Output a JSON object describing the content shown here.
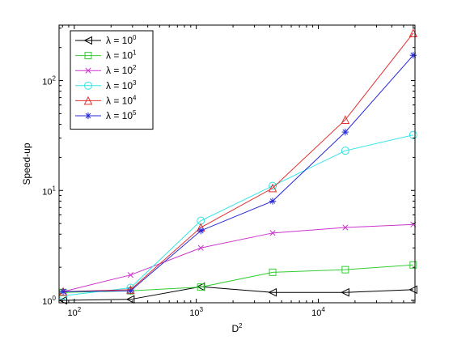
{
  "chart_data": {
    "type": "line",
    "xscale": "log",
    "yscale": "log",
    "xlabel": "D",
    "xlabel_sup": "2",
    "ylabel": "Speed-up",
    "xlim": [
      75,
      62000
    ],
    "ylim": [
      0.95,
      320
    ],
    "x_ticks": [
      {
        "value": 100,
        "base": "10",
        "exp": "2"
      },
      {
        "value": 1000,
        "base": "10",
        "exp": "3"
      },
      {
        "value": 10000,
        "base": "10",
        "exp": "4"
      }
    ],
    "y_ticks": [
      {
        "value": 1,
        "base": "10",
        "exp": "0"
      },
      {
        "value": 10,
        "base": "10",
        "exp": "1"
      },
      {
        "value": 100,
        "base": "10",
        "exp": "2"
      }
    ],
    "x": [
      81,
      289,
      1089,
      4225,
      16641,
      60000
    ],
    "legend_position": "top-left",
    "grid": false,
    "series": [
      {
        "name": "λ = 10",
        "name_sup": "0",
        "color": "#000000",
        "marker": "triangle-left",
        "values": [
          1.0,
          1.02,
          1.33,
          1.18,
          1.18,
          1.25
        ]
      },
      {
        "name": "λ = 10",
        "name_sup": "1",
        "color": "#33cc33",
        "marker": "square",
        "values": [
          1.18,
          1.22,
          1.32,
          1.8,
          1.9,
          2.1
        ]
      },
      {
        "name": "λ = 10",
        "name_sup": "2",
        "color": "#cc33cc",
        "marker": "x",
        "values": [
          1.2,
          1.7,
          3.0,
          4.1,
          4.6,
          4.9
        ]
      },
      {
        "name": "λ = 10",
        "name_sup": "3",
        "color": "#33e6e6",
        "marker": "circle",
        "values": [
          1.1,
          1.3,
          5.3,
          11.0,
          23.0,
          32.0
        ]
      },
      {
        "name": "λ = 10",
        "name_sup": "4",
        "color": "#e03030",
        "marker": "triangle-up",
        "values": [
          1.2,
          1.25,
          4.6,
          10.5,
          44.0,
          270.0
        ]
      },
      {
        "name": "λ = 10",
        "name_sup": "5",
        "color": "#2828d8",
        "marker": "star",
        "values": [
          1.2,
          1.22,
          4.3,
          8.0,
          34.0,
          170.0
        ]
      }
    ]
  }
}
